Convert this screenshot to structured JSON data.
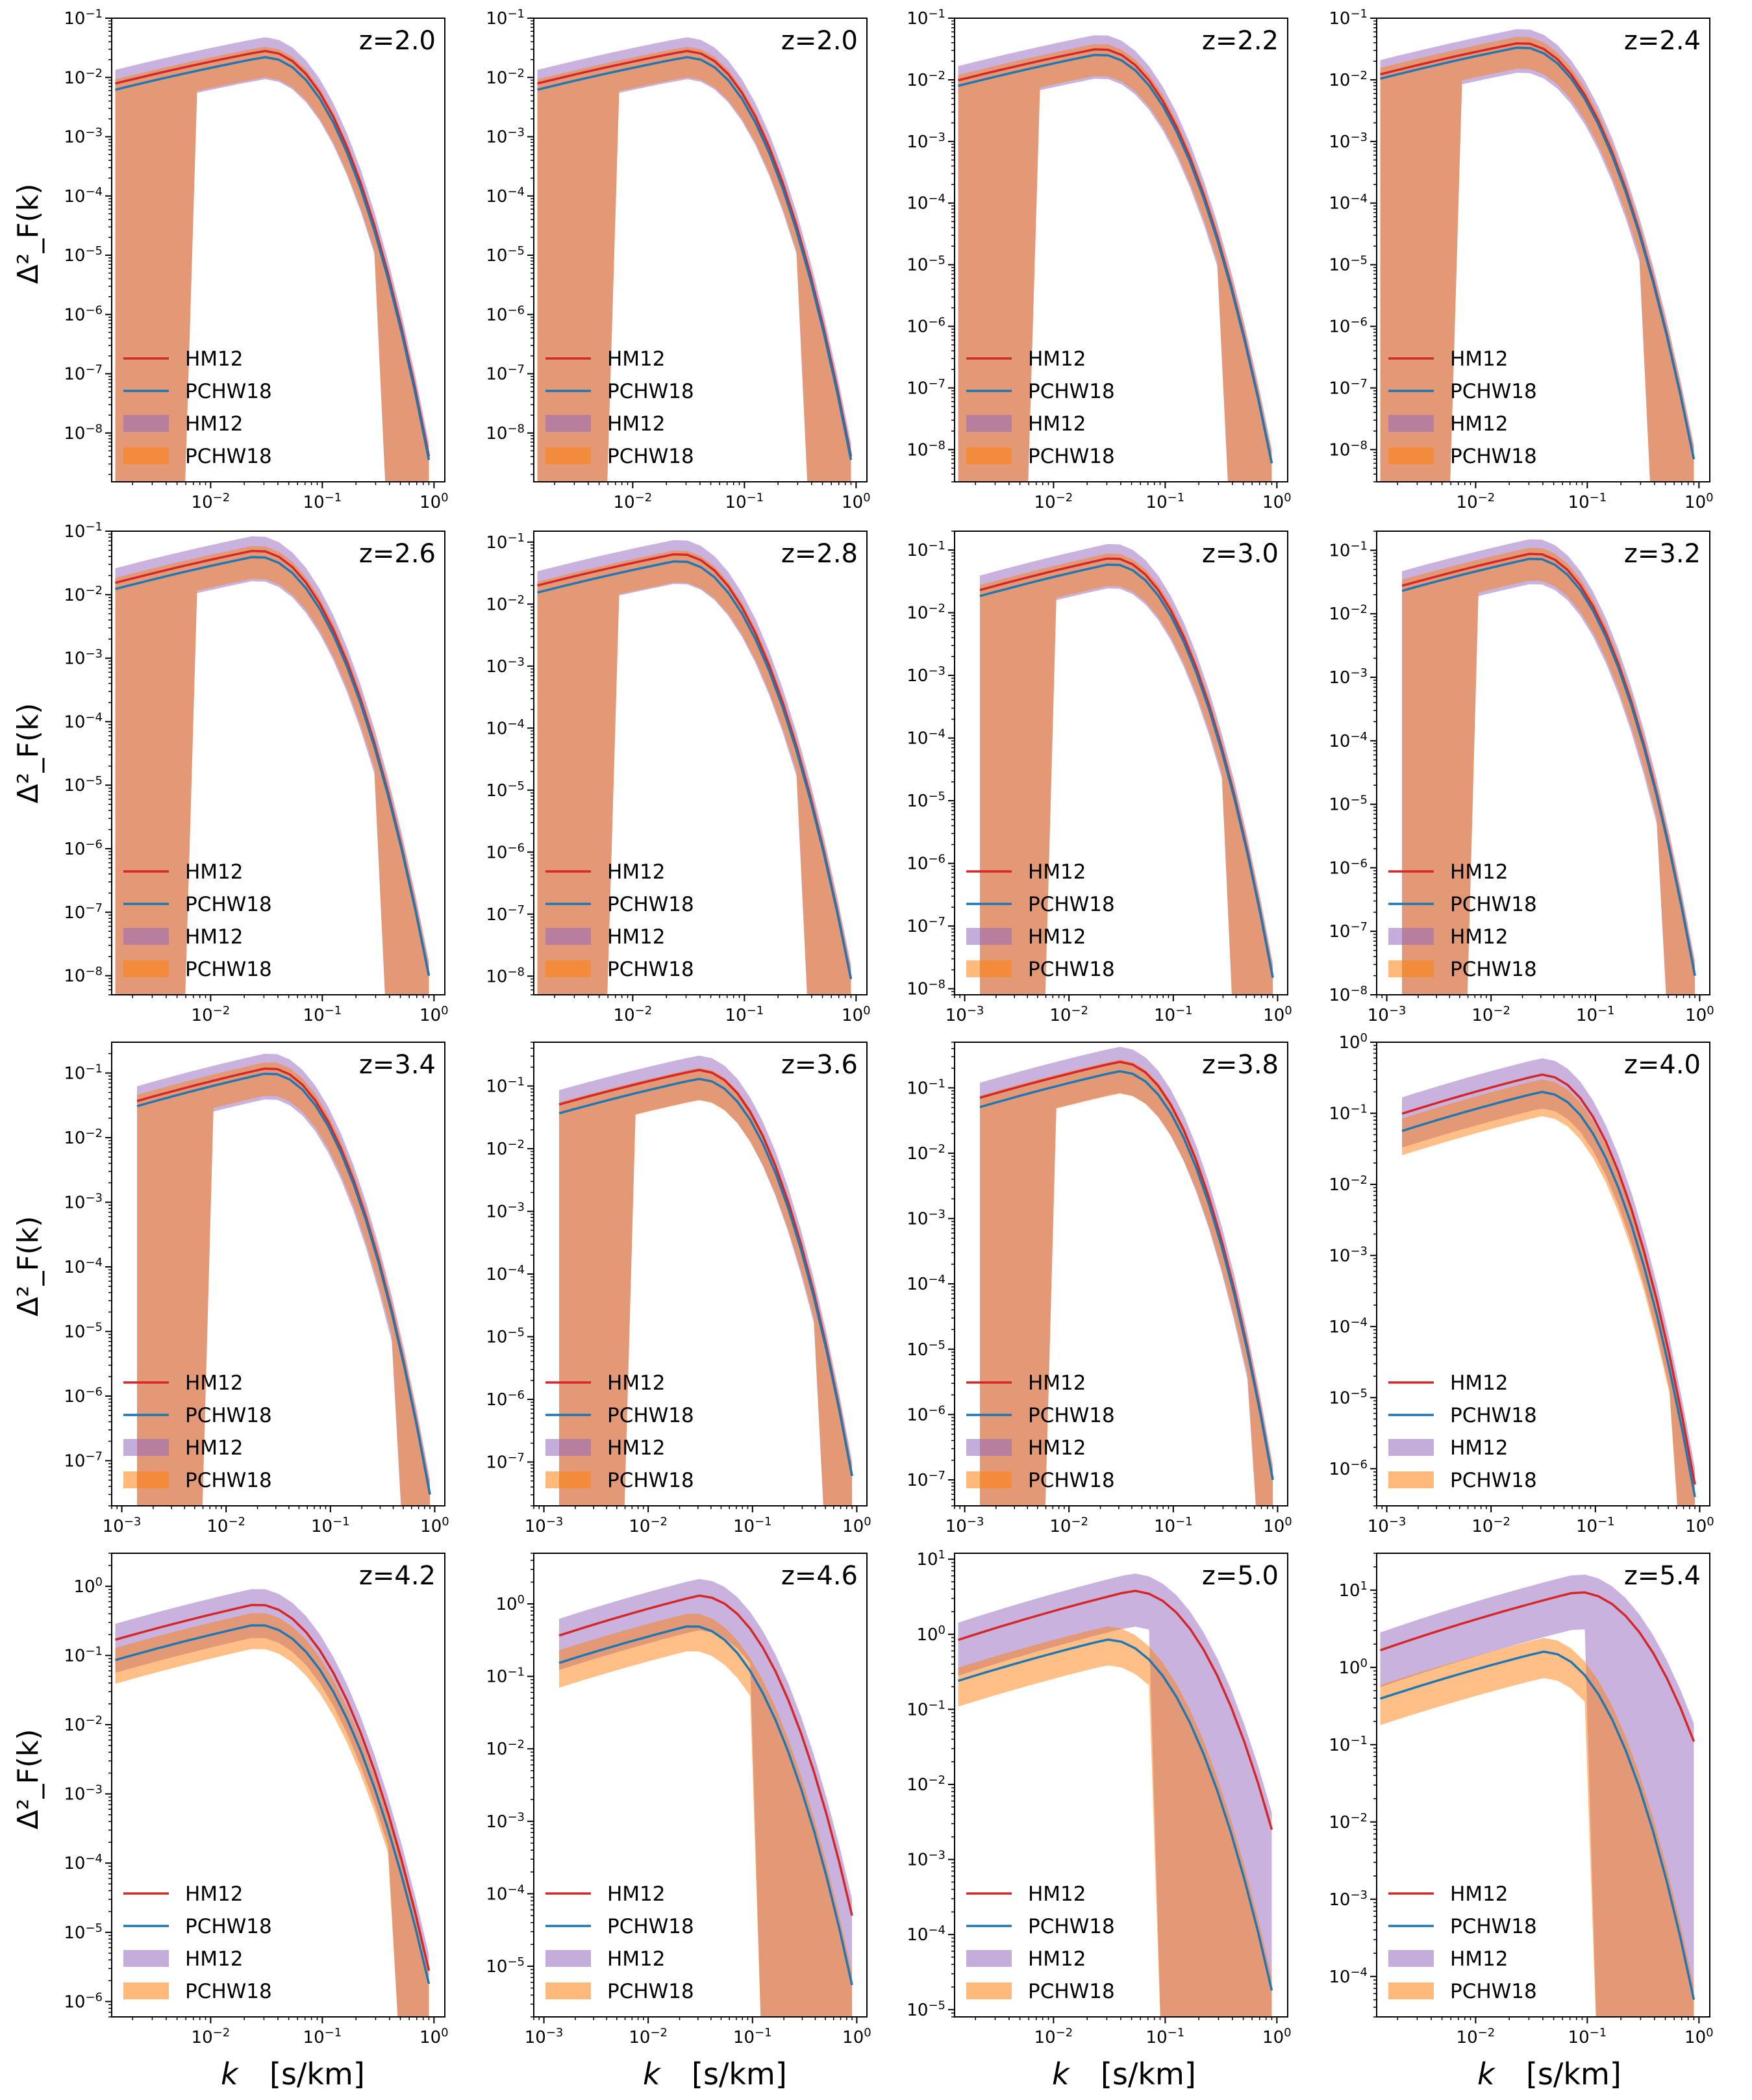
{
  "figure": {
    "ylabel": "Δ²_F(k)",
    "xlabel_var": "k",
    "xlabel_unit": "[s/km]"
  },
  "legend_labels": {
    "line_hm12": "HM12",
    "line_pchw18": "PCHW18",
    "band_hm12": "HM12",
    "band_pchw18": "PCHW18"
  },
  "colors": {
    "hm12_line": "#d62728",
    "pchw18_line": "#1f77b4",
    "hm12_band": "#9467bd",
    "pchw18_band": "#ff7f0e",
    "overlap_band": "#e09a78"
  },
  "chart_data": [
    {
      "type": "line",
      "title": "z=2.0",
      "xscale": "log",
      "yscale": "log",
      "xlim": [
        0.0013,
        1.25
      ],
      "ylim": [
        1.5e-09,
        0.1
      ],
      "band_cut_low": 0.007,
      "band_cut_high": 0.3,
      "series": [
        {
          "name": "HM12",
          "peak": 0.028,
          "peak_k": 0.03,
          "end_val": 4e-09
        },
        {
          "name": "PCHW18",
          "peak": 0.022,
          "peak_k": 0.03,
          "end_val": 3.5e-09
        }
      ]
    },
    {
      "type": "line",
      "title": "z=2.0",
      "xscale": "log",
      "yscale": "log",
      "xlim": [
        0.0013,
        1.25
      ],
      "ylim": [
        1.5e-09,
        0.1
      ],
      "band_cut_low": 0.007,
      "band_cut_high": 0.3,
      "series": [
        {
          "name": "HM12",
          "peak": 0.028,
          "peak_k": 0.03,
          "end_val": 4e-09
        },
        {
          "name": "PCHW18",
          "peak": 0.022,
          "peak_k": 0.03,
          "end_val": 3.5e-09
        }
      ]
    },
    {
      "type": "line",
      "title": "z=2.2",
      "xscale": "log",
      "yscale": "log",
      "xlim": [
        0.0013,
        1.25
      ],
      "ylim": [
        3e-09,
        0.1
      ],
      "band_cut_low": 0.007,
      "band_cut_high": 0.3,
      "series": [
        {
          "name": "HM12",
          "peak": 0.032,
          "peak_k": 0.025,
          "end_val": 6e-09
        },
        {
          "name": "PCHW18",
          "peak": 0.026,
          "peak_k": 0.025,
          "end_val": 6e-09
        }
      ]
    },
    {
      "type": "line",
      "title": "z=2.4",
      "xscale": "log",
      "yscale": "log",
      "xlim": [
        0.0013,
        1.25
      ],
      "ylim": [
        3e-09,
        0.1
      ],
      "band_cut_low": 0.007,
      "band_cut_high": 0.3,
      "series": [
        {
          "name": "HM12",
          "peak": 0.04,
          "peak_k": 0.025,
          "end_val": 7e-09
        },
        {
          "name": "PCHW18",
          "peak": 0.034,
          "peak_k": 0.025,
          "end_val": 7e-09
        }
      ]
    },
    {
      "type": "line",
      "title": "z=2.6",
      "xscale": "log",
      "yscale": "log",
      "xlim": [
        0.0013,
        1.25
      ],
      "ylim": [
        5e-09,
        0.1
      ],
      "band_cut_low": 0.007,
      "band_cut_high": 0.3,
      "series": [
        {
          "name": "HM12",
          "peak": 0.05,
          "peak_k": 0.025,
          "end_val": 1e-08
        },
        {
          "name": "PCHW18",
          "peak": 0.04,
          "peak_k": 0.025,
          "end_val": 1e-08
        }
      ]
    },
    {
      "type": "line",
      "title": "z=2.8",
      "xscale": "log",
      "yscale": "log",
      "xlim": [
        0.0013,
        1.25
      ],
      "ylim": [
        5e-09,
        0.15
      ],
      "band_cut_low": 0.007,
      "band_cut_high": 0.3,
      "series": [
        {
          "name": "HM12",
          "peak": 0.065,
          "peak_k": 0.025,
          "end_val": 9e-09
        },
        {
          "name": "PCHW18",
          "peak": 0.05,
          "peak_k": 0.025,
          "end_val": 9e-09
        }
      ]
    },
    {
      "type": "line",
      "title": "z=3.0",
      "xscale": "log",
      "yscale": "log",
      "xlim": [
        0.0008,
        1.25
      ],
      "ylim": [
        8e-09,
        0.2
      ],
      "band_cut_low": 0.007,
      "band_cut_high": 0.3,
      "series": [
        {
          "name": "HM12",
          "peak": 0.075,
          "peak_k": 0.025,
          "end_val": 1.5e-08
        },
        {
          "name": "PCHW18",
          "peak": 0.06,
          "peak_k": 0.025,
          "end_val": 1.5e-08
        }
      ]
    },
    {
      "type": "line",
      "title": "z=3.2",
      "xscale": "log",
      "yscale": "log",
      "xlim": [
        0.0008,
        1.25
      ],
      "ylim": [
        1e-08,
        0.2
      ],
      "band_cut_low": 0.007,
      "band_cut_high": 0.4,
      "series": [
        {
          "name": "HM12",
          "peak": 0.09,
          "peak_k": 0.025,
          "end_val": 2e-08
        },
        {
          "name": "PCHW18",
          "peak": 0.075,
          "peak_k": 0.025,
          "end_val": 2e-08
        }
      ]
    },
    {
      "type": "line",
      "title": "z=3.4",
      "xscale": "log",
      "yscale": "log",
      "xlim": [
        0.0008,
        1.25
      ],
      "ylim": [
        2e-08,
        0.3
      ],
      "band_cut_low": 0.007,
      "band_cut_high": 0.4,
      "series": [
        {
          "name": "HM12",
          "peak": 0.12,
          "peak_k": 0.025,
          "end_val": 3e-08
        },
        {
          "name": "PCHW18",
          "peak": 0.1,
          "peak_k": 0.025,
          "end_val": 3e-08
        }
      ]
    },
    {
      "type": "line",
      "title": "z=3.6",
      "xscale": "log",
      "yscale": "log",
      "xlim": [
        0.0008,
        1.25
      ],
      "ylim": [
        2e-08,
        0.5
      ],
      "band_cut_low": 0.007,
      "band_cut_high": 0.4,
      "series": [
        {
          "name": "HM12",
          "peak": 0.18,
          "peak_k": 0.03,
          "end_val": 6e-08
        },
        {
          "name": "PCHW18",
          "peak": 0.13,
          "peak_k": 0.03,
          "end_val": 6e-08
        }
      ]
    },
    {
      "type": "line",
      "title": "z=3.8",
      "xscale": "log",
      "yscale": "log",
      "xlim": [
        0.0008,
        1.25
      ],
      "ylim": [
        4e-08,
        0.5
      ],
      "band_cut_low": 0.007,
      "band_cut_high": 0.6,
      "series": [
        {
          "name": "HM12",
          "peak": 0.25,
          "peak_k": 0.03,
          "end_val": 1e-07
        },
        {
          "name": "PCHW18",
          "peak": 0.18,
          "peak_k": 0.03,
          "end_val": 1e-07
        }
      ]
    },
    {
      "type": "line",
      "title": "z=4.0",
      "xscale": "log",
      "yscale": "log",
      "xlim": [
        0.0008,
        1.25
      ],
      "ylim": [
        3e-07,
        1.0
      ],
      "band_cut_low": 0.0013,
      "band_cut_high": 0.6,
      "series": [
        {
          "name": "HM12",
          "peak": 0.35,
          "peak_k": 0.03,
          "end_val": 6e-07
        },
        {
          "name": "PCHW18",
          "peak": 0.2,
          "peak_k": 0.03,
          "end_val": 4e-07
        }
      ]
    },
    {
      "type": "line",
      "title": "z=4.2",
      "xscale": "log",
      "yscale": "log",
      "xlim": [
        0.0013,
        1.25
      ],
      "ylim": [
        6e-07,
        3.0
      ],
      "band_cut_low": 0.0013,
      "band_cut_high": 0.4,
      "series": [
        {
          "name": "HM12",
          "peak": 0.55,
          "peak_k": 0.025,
          "end_val": 2.8e-06
        },
        {
          "name": "PCHW18",
          "peak": 0.28,
          "peak_k": 0.025,
          "end_val": 1.8e-06
        }
      ]
    },
    {
      "type": "line",
      "title": "z=4.6",
      "xscale": "log",
      "yscale": "log",
      "xlim": [
        0.0008,
        1.25
      ],
      "ylim": [
        2e-06,
        5.0
      ],
      "band_cut_low": 0.0013,
      "band_cut_high": 0.12,
      "series": [
        {
          "name": "HM12",
          "peak": 1.3,
          "peak_k": 0.03,
          "end_val": 5e-05
        },
        {
          "name": "PCHW18",
          "peak": 0.5,
          "peak_k": 0.025,
          "end_val": 5.5e-06
        }
      ]
    },
    {
      "type": "line",
      "title": "z=5.0",
      "xscale": "log",
      "yscale": "log",
      "xlim": [
        0.0013,
        1.25
      ],
      "ylim": [
        8e-06,
        12.0
      ],
      "band_cut_low": 0.0013,
      "band_cut_high": 0.08,
      "series": [
        {
          "name": "HM12",
          "peak": 3.8,
          "peak_k": 0.05,
          "end_val": 0.0025
        },
        {
          "name": "PCHW18",
          "peak": 0.85,
          "peak_k": 0.03,
          "end_val": 1.8e-05
        }
      ]
    },
    {
      "type": "line",
      "title": "z=5.4",
      "xscale": "log",
      "yscale": "log",
      "xlim": [
        0.0013,
        1.25
      ],
      "ylim": [
        3e-05,
        30.0
      ],
      "band_cut_low": 0.0013,
      "band_cut_high": 0.11,
      "series": [
        {
          "name": "HM12",
          "peak": 9.5,
          "peak_k": 0.08,
          "end_val": 0.11
        },
        {
          "name": "PCHW18",
          "peak": 1.6,
          "peak_k": 0.04,
          "end_val": 5e-05
        }
      ]
    }
  ]
}
